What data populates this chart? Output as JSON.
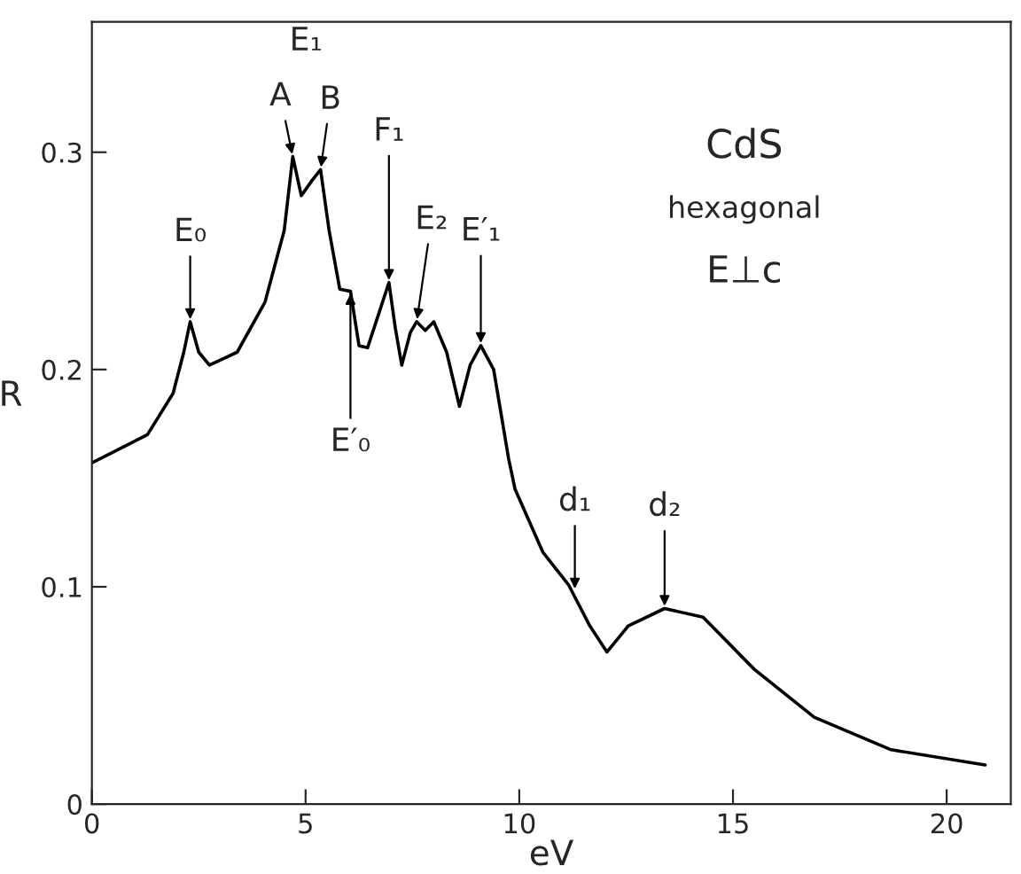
{
  "chart_data": {
    "type": "line",
    "xlabel": "eV",
    "ylabel": "R",
    "xlim": [
      0,
      21.5
    ],
    "ylim": [
      0,
      0.36
    ],
    "xticks": [
      0,
      5,
      10,
      15,
      20
    ],
    "yticks": [
      0,
      0.1,
      0.2,
      0.3
    ],
    "grid": false,
    "legend": false,
    "series": [
      {
        "color": "#000000",
        "x": [
          0,
          1.3,
          1.9,
          2.15,
          2.3,
          2.5,
          2.75,
          3.4,
          4.05,
          4.5,
          4.7,
          4.9,
          5.15,
          5.35,
          5.55,
          5.8,
          6.05,
          6.25,
          6.45,
          6.7,
          6.95,
          7.1,
          7.25,
          7.45,
          7.6,
          7.8,
          8.0,
          8.3,
          8.6,
          8.85,
          9.1,
          9.4,
          9.75,
          9.9,
          10.55,
          11.15,
          11.65,
          12.05,
          12.55,
          13.4,
          14.3,
          15.5,
          16.9,
          18.7,
          20.9
        ],
        "values": [
          0.157,
          0.17,
          0.189,
          0.208,
          0.222,
          0.208,
          0.202,
          0.208,
          0.231,
          0.264,
          0.298,
          0.28,
          0.287,
          0.292,
          0.264,
          0.237,
          0.236,
          0.211,
          0.21,
          0.225,
          0.24,
          0.219,
          0.202,
          0.217,
          0.222,
          0.218,
          0.222,
          0.208,
          0.183,
          0.202,
          0.211,
          0.2,
          0.159,
          0.145,
          0.116,
          0.101,
          0.082,
          0.07,
          0.082,
          0.09,
          0.086,
          0.062,
          0.04,
          0.025,
          0.018
        ]
      }
    ],
    "annotations": [
      {
        "text": "E₀",
        "x": 2.3,
        "y": 0.222
      },
      "E₁",
      {
        "text": "A",
        "x": 4.7,
        "y": 0.298
      },
      {
        "text": "B",
        "x": 5.35,
        "y": 0.292
      },
      {
        "text": "F₁",
        "x": 6.95,
        "y": 0.24
      },
      {
        "text": "E′₀",
        "x": 6.05,
        "y": 0.236
      },
      {
        "text": "E₂",
        "x": 7.6,
        "y": 0.222
      },
      {
        "text": "E′₁",
        "x": 9.1,
        "y": 0.211
      },
      {
        "text": "d₁",
        "x": 11.3,
        "y": 0.098
      },
      {
        "text": "d₂",
        "x": 13.4,
        "y": 0.09
      },
      "CdS",
      "hexagonal",
      "E⊥c"
    ]
  }
}
